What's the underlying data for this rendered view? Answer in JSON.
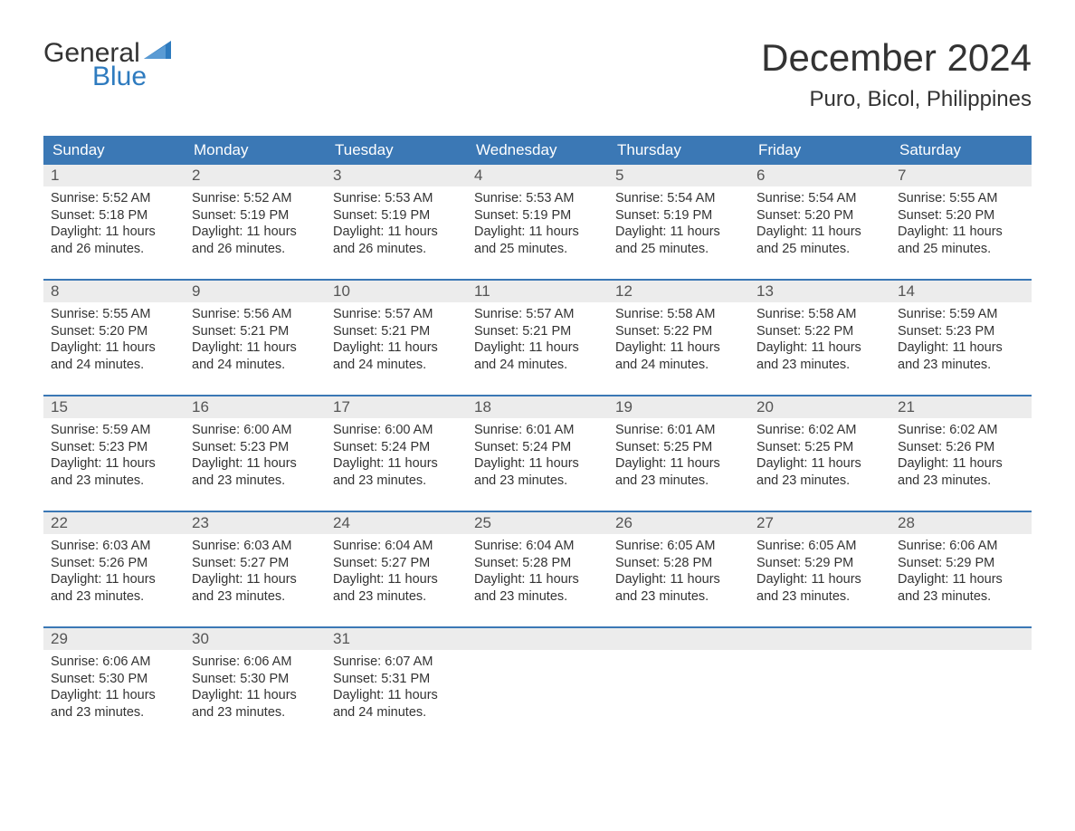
{
  "logo": {
    "word1": "General",
    "word2": "Blue",
    "icon_color": "#2e7bbf"
  },
  "title": "December 2024",
  "location": "Puro, Bicol, Philippines",
  "colors": {
    "header_bg": "#3b78b5",
    "header_text": "#ffffff",
    "daynum_bg": "#ececec",
    "row_divider": "#3b78b5",
    "body_text": "#333333",
    "logo_blue": "#2e7bbf"
  },
  "typography": {
    "title_fontsize": 42,
    "location_fontsize": 24,
    "dayheader_fontsize": 17,
    "daynum_fontsize": 17,
    "body_fontsize": 14.5,
    "logo_fontsize": 30
  },
  "day_headers": [
    "Sunday",
    "Monday",
    "Tuesday",
    "Wednesday",
    "Thursday",
    "Friday",
    "Saturday"
  ],
  "weeks": [
    [
      {
        "n": "1",
        "sr": "Sunrise: 5:52 AM",
        "ss": "Sunset: 5:18 PM",
        "d1": "Daylight: 11 hours",
        "d2": "and 26 minutes."
      },
      {
        "n": "2",
        "sr": "Sunrise: 5:52 AM",
        "ss": "Sunset: 5:19 PM",
        "d1": "Daylight: 11 hours",
        "d2": "and 26 minutes."
      },
      {
        "n": "3",
        "sr": "Sunrise: 5:53 AM",
        "ss": "Sunset: 5:19 PM",
        "d1": "Daylight: 11 hours",
        "d2": "and 26 minutes."
      },
      {
        "n": "4",
        "sr": "Sunrise: 5:53 AM",
        "ss": "Sunset: 5:19 PM",
        "d1": "Daylight: 11 hours",
        "d2": "and 25 minutes."
      },
      {
        "n": "5",
        "sr": "Sunrise: 5:54 AM",
        "ss": "Sunset: 5:19 PM",
        "d1": "Daylight: 11 hours",
        "d2": "and 25 minutes."
      },
      {
        "n": "6",
        "sr": "Sunrise: 5:54 AM",
        "ss": "Sunset: 5:20 PM",
        "d1": "Daylight: 11 hours",
        "d2": "and 25 minutes."
      },
      {
        "n": "7",
        "sr": "Sunrise: 5:55 AM",
        "ss": "Sunset: 5:20 PM",
        "d1": "Daylight: 11 hours",
        "d2": "and 25 minutes."
      }
    ],
    [
      {
        "n": "8",
        "sr": "Sunrise: 5:55 AM",
        "ss": "Sunset: 5:20 PM",
        "d1": "Daylight: 11 hours",
        "d2": "and 24 minutes."
      },
      {
        "n": "9",
        "sr": "Sunrise: 5:56 AM",
        "ss": "Sunset: 5:21 PM",
        "d1": "Daylight: 11 hours",
        "d2": "and 24 minutes."
      },
      {
        "n": "10",
        "sr": "Sunrise: 5:57 AM",
        "ss": "Sunset: 5:21 PM",
        "d1": "Daylight: 11 hours",
        "d2": "and 24 minutes."
      },
      {
        "n": "11",
        "sr": "Sunrise: 5:57 AM",
        "ss": "Sunset: 5:21 PM",
        "d1": "Daylight: 11 hours",
        "d2": "and 24 minutes."
      },
      {
        "n": "12",
        "sr": "Sunrise: 5:58 AM",
        "ss": "Sunset: 5:22 PM",
        "d1": "Daylight: 11 hours",
        "d2": "and 24 minutes."
      },
      {
        "n": "13",
        "sr": "Sunrise: 5:58 AM",
        "ss": "Sunset: 5:22 PM",
        "d1": "Daylight: 11 hours",
        "d2": "and 23 minutes."
      },
      {
        "n": "14",
        "sr": "Sunrise: 5:59 AM",
        "ss": "Sunset: 5:23 PM",
        "d1": "Daylight: 11 hours",
        "d2": "and 23 minutes."
      }
    ],
    [
      {
        "n": "15",
        "sr": "Sunrise: 5:59 AM",
        "ss": "Sunset: 5:23 PM",
        "d1": "Daylight: 11 hours",
        "d2": "and 23 minutes."
      },
      {
        "n": "16",
        "sr": "Sunrise: 6:00 AM",
        "ss": "Sunset: 5:23 PM",
        "d1": "Daylight: 11 hours",
        "d2": "and 23 minutes."
      },
      {
        "n": "17",
        "sr": "Sunrise: 6:00 AM",
        "ss": "Sunset: 5:24 PM",
        "d1": "Daylight: 11 hours",
        "d2": "and 23 minutes."
      },
      {
        "n": "18",
        "sr": "Sunrise: 6:01 AM",
        "ss": "Sunset: 5:24 PM",
        "d1": "Daylight: 11 hours",
        "d2": "and 23 minutes."
      },
      {
        "n": "19",
        "sr": "Sunrise: 6:01 AM",
        "ss": "Sunset: 5:25 PM",
        "d1": "Daylight: 11 hours",
        "d2": "and 23 minutes."
      },
      {
        "n": "20",
        "sr": "Sunrise: 6:02 AM",
        "ss": "Sunset: 5:25 PM",
        "d1": "Daylight: 11 hours",
        "d2": "and 23 minutes."
      },
      {
        "n": "21",
        "sr": "Sunrise: 6:02 AM",
        "ss": "Sunset: 5:26 PM",
        "d1": "Daylight: 11 hours",
        "d2": "and 23 minutes."
      }
    ],
    [
      {
        "n": "22",
        "sr": "Sunrise: 6:03 AM",
        "ss": "Sunset: 5:26 PM",
        "d1": "Daylight: 11 hours",
        "d2": "and 23 minutes."
      },
      {
        "n": "23",
        "sr": "Sunrise: 6:03 AM",
        "ss": "Sunset: 5:27 PM",
        "d1": "Daylight: 11 hours",
        "d2": "and 23 minutes."
      },
      {
        "n": "24",
        "sr": "Sunrise: 6:04 AM",
        "ss": "Sunset: 5:27 PM",
        "d1": "Daylight: 11 hours",
        "d2": "and 23 minutes."
      },
      {
        "n": "25",
        "sr": "Sunrise: 6:04 AM",
        "ss": "Sunset: 5:28 PM",
        "d1": "Daylight: 11 hours",
        "d2": "and 23 minutes."
      },
      {
        "n": "26",
        "sr": "Sunrise: 6:05 AM",
        "ss": "Sunset: 5:28 PM",
        "d1": "Daylight: 11 hours",
        "d2": "and 23 minutes."
      },
      {
        "n": "27",
        "sr": "Sunrise: 6:05 AM",
        "ss": "Sunset: 5:29 PM",
        "d1": "Daylight: 11 hours",
        "d2": "and 23 minutes."
      },
      {
        "n": "28",
        "sr": "Sunrise: 6:06 AM",
        "ss": "Sunset: 5:29 PM",
        "d1": "Daylight: 11 hours",
        "d2": "and 23 minutes."
      }
    ],
    [
      {
        "n": "29",
        "sr": "Sunrise: 6:06 AM",
        "ss": "Sunset: 5:30 PM",
        "d1": "Daylight: 11 hours",
        "d2": "and 23 minutes."
      },
      {
        "n": "30",
        "sr": "Sunrise: 6:06 AM",
        "ss": "Sunset: 5:30 PM",
        "d1": "Daylight: 11 hours",
        "d2": "and 23 minutes."
      },
      {
        "n": "31",
        "sr": "Sunrise: 6:07 AM",
        "ss": "Sunset: 5:31 PM",
        "d1": "Daylight: 11 hours",
        "d2": "and 24 minutes."
      },
      {
        "empty": true
      },
      {
        "empty": true
      },
      {
        "empty": true
      },
      {
        "empty": true
      }
    ]
  ]
}
